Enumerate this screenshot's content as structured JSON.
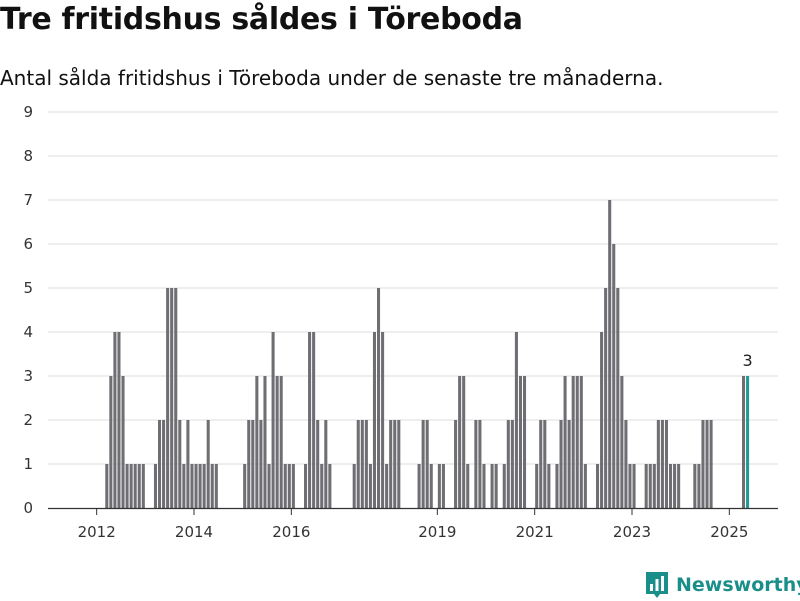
{
  "header": {
    "title": "Tre fritidshus såldes i Töreboda",
    "subtitle": "Antal sålda fritidshus i Töreboda under de senaste tre månaderna."
  },
  "brand": {
    "name": "Newsworthy",
    "color": "#1a8f8a",
    "icon": "bar-chart-logo-icon"
  },
  "colors": {
    "bar": "#6e6e73",
    "highlight": "#1f9a95",
    "grid": "#dddddd",
    "axis": "#333333"
  },
  "chart_data": {
    "type": "bar",
    "title": "Tre fritidshus såldes i Töreboda",
    "subtitle": "Antal sålda fritidshus i Töreboda under de senaste tre månaderna.",
    "xlabel": "",
    "ylabel": "",
    "ylim": [
      0,
      9
    ],
    "yticks": [
      "0",
      "1",
      "2",
      "3",
      "4",
      "5",
      "6",
      "7",
      "8",
      "9"
    ],
    "grid": true,
    "x_start": "2011-01",
    "x_end": "2025-12",
    "xtick_labels": [
      {
        "label": "2012",
        "date": "2012-01"
      },
      {
        "label": "2014",
        "date": "2014-01"
      },
      {
        "label": "2016",
        "date": "2016-01"
      },
      {
        "label": "2019",
        "date": "2019-01"
      },
      {
        "label": "2021",
        "date": "2021-01"
      },
      {
        "label": "2023",
        "date": "2023-01"
      },
      {
        "label": "2025",
        "date": "2025-01"
      }
    ],
    "series": [
      {
        "values": [
          {
            "date": "2012-03",
            "value": 1
          },
          {
            "date": "2012-04",
            "value": 3
          },
          {
            "date": "2012-05",
            "value": 4
          },
          {
            "date": "2012-06",
            "value": 4
          },
          {
            "date": "2012-07",
            "value": 3
          },
          {
            "date": "2012-08",
            "value": 1
          },
          {
            "date": "2012-09",
            "value": 1
          },
          {
            "date": "2012-10",
            "value": 1
          },
          {
            "date": "2012-11",
            "value": 1
          },
          {
            "date": "2012-12",
            "value": 1
          },
          {
            "date": "2013-03",
            "value": 1
          },
          {
            "date": "2013-04",
            "value": 2
          },
          {
            "date": "2013-05",
            "value": 2
          },
          {
            "date": "2013-06",
            "value": 5
          },
          {
            "date": "2013-07",
            "value": 5
          },
          {
            "date": "2013-08",
            "value": 5
          },
          {
            "date": "2013-09",
            "value": 2
          },
          {
            "date": "2013-10",
            "value": 1
          },
          {
            "date": "2013-11",
            "value": 2
          },
          {
            "date": "2013-12",
            "value": 1
          },
          {
            "date": "2014-01",
            "value": 1
          },
          {
            "date": "2014-02",
            "value": 1
          },
          {
            "date": "2014-03",
            "value": 1
          },
          {
            "date": "2014-04",
            "value": 2
          },
          {
            "date": "2014-05",
            "value": 1
          },
          {
            "date": "2014-06",
            "value": 1
          },
          {
            "date": "2015-01",
            "value": 1
          },
          {
            "date": "2015-02",
            "value": 2
          },
          {
            "date": "2015-03",
            "value": 2
          },
          {
            "date": "2015-04",
            "value": 3
          },
          {
            "date": "2015-05",
            "value": 2
          },
          {
            "date": "2015-06",
            "value": 3
          },
          {
            "date": "2015-07",
            "value": 1
          },
          {
            "date": "2015-08",
            "value": 4
          },
          {
            "date": "2015-09",
            "value": 3
          },
          {
            "date": "2015-10",
            "value": 3
          },
          {
            "date": "2015-11",
            "value": 1
          },
          {
            "date": "2015-12",
            "value": 1
          },
          {
            "date": "2016-01",
            "value": 1
          },
          {
            "date": "2016-04",
            "value": 1
          },
          {
            "date": "2016-05",
            "value": 4
          },
          {
            "date": "2016-06",
            "value": 4
          },
          {
            "date": "2016-07",
            "value": 2
          },
          {
            "date": "2016-08",
            "value": 1
          },
          {
            "date": "2016-09",
            "value": 2
          },
          {
            "date": "2016-10",
            "value": 1
          },
          {
            "date": "2017-04",
            "value": 1
          },
          {
            "date": "2017-05",
            "value": 2
          },
          {
            "date": "2017-06",
            "value": 2
          },
          {
            "date": "2017-07",
            "value": 2
          },
          {
            "date": "2017-08",
            "value": 1
          },
          {
            "date": "2017-09",
            "value": 4
          },
          {
            "date": "2017-10",
            "value": 5
          },
          {
            "date": "2017-11",
            "value": 4
          },
          {
            "date": "2017-12",
            "value": 1
          },
          {
            "date": "2018-01",
            "value": 2
          },
          {
            "date": "2018-02",
            "value": 2
          },
          {
            "date": "2018-03",
            "value": 2
          },
          {
            "date": "2018-08",
            "value": 1
          },
          {
            "date": "2018-09",
            "value": 2
          },
          {
            "date": "2018-10",
            "value": 2
          },
          {
            "date": "2018-11",
            "value": 1
          },
          {
            "date": "2019-01",
            "value": 1
          },
          {
            "date": "2019-02",
            "value": 1
          },
          {
            "date": "2019-05",
            "value": 2
          },
          {
            "date": "2019-06",
            "value": 3
          },
          {
            "date": "2019-07",
            "value": 3
          },
          {
            "date": "2019-08",
            "value": 1
          },
          {
            "date": "2019-10",
            "value": 2
          },
          {
            "date": "2019-11",
            "value": 2
          },
          {
            "date": "2019-12",
            "value": 1
          },
          {
            "date": "2020-02",
            "value": 1
          },
          {
            "date": "2020-03",
            "value": 1
          },
          {
            "date": "2020-05",
            "value": 1
          },
          {
            "date": "2020-06",
            "value": 2
          },
          {
            "date": "2020-07",
            "value": 2
          },
          {
            "date": "2020-08",
            "value": 4
          },
          {
            "date": "2020-09",
            "value": 3
          },
          {
            "date": "2020-10",
            "value": 3
          },
          {
            "date": "2021-01",
            "value": 1
          },
          {
            "date": "2021-02",
            "value": 2
          },
          {
            "date": "2021-03",
            "value": 2
          },
          {
            "date": "2021-04",
            "value": 1
          },
          {
            "date": "2021-06",
            "value": 1
          },
          {
            "date": "2021-07",
            "value": 2
          },
          {
            "date": "2021-08",
            "value": 3
          },
          {
            "date": "2021-09",
            "value": 2
          },
          {
            "date": "2021-10",
            "value": 3
          },
          {
            "date": "2021-11",
            "value": 3
          },
          {
            "date": "2021-12",
            "value": 3
          },
          {
            "date": "2022-01",
            "value": 1
          },
          {
            "date": "2022-04",
            "value": 1
          },
          {
            "date": "2022-05",
            "value": 4
          },
          {
            "date": "2022-06",
            "value": 5
          },
          {
            "date": "2022-07",
            "value": 7
          },
          {
            "date": "2022-08",
            "value": 6
          },
          {
            "date": "2022-09",
            "value": 5
          },
          {
            "date": "2022-10",
            "value": 3
          },
          {
            "date": "2022-11",
            "value": 2
          },
          {
            "date": "2022-12",
            "value": 1
          },
          {
            "date": "2023-01",
            "value": 1
          },
          {
            "date": "2023-04",
            "value": 1
          },
          {
            "date": "2023-05",
            "value": 1
          },
          {
            "date": "2023-06",
            "value": 1
          },
          {
            "date": "2023-07",
            "value": 2
          },
          {
            "date": "2023-08",
            "value": 2
          },
          {
            "date": "2023-09",
            "value": 2
          },
          {
            "date": "2023-10",
            "value": 1
          },
          {
            "date": "2023-11",
            "value": 1
          },
          {
            "date": "2023-12",
            "value": 1
          },
          {
            "date": "2024-04",
            "value": 1
          },
          {
            "date": "2024-05",
            "value": 1
          },
          {
            "date": "2024-06",
            "value": 2
          },
          {
            "date": "2024-07",
            "value": 2
          },
          {
            "date": "2024-08",
            "value": 2
          },
          {
            "date": "2025-04",
            "value": 3
          },
          {
            "date": "2025-05",
            "value": 3
          }
        ]
      }
    ],
    "highlight_date": "2025-05",
    "annotation": {
      "date": "2025-05",
      "text": "3"
    }
  }
}
